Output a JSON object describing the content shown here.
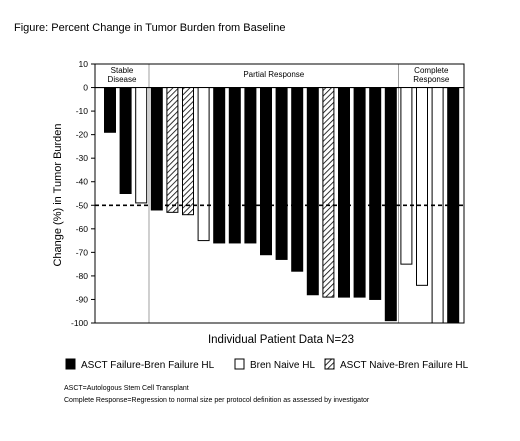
{
  "chart_data": {
    "type": "bar",
    "title": "Figure: Percent Change in Tumor Burden from Baseline",
    "xlabel": "Individual Patient Data N=23",
    "ylabel": "Change (%) in Tumor Burden",
    "ylim": [
      -100,
      10
    ],
    "yticks": [
      "10",
      "0",
      "-10",
      "-20",
      "-30",
      "-40",
      "-50",
      "-60",
      "-70",
      "-80",
      "-90",
      "-100"
    ],
    "reference_line": -50,
    "colors": {
      "ASCT Failure-Bren Failure HL": "#000000",
      "Bren Naive HL": "#ffffff",
      "ASCT Naive-Bren Failure HL": "hatched"
    },
    "regions": [
      {
        "label": "Stable Disease",
        "bars": [
          0,
          2
        ]
      },
      {
        "label": "Partial Response",
        "bars": [
          3,
          18
        ]
      },
      {
        "label": "Complete Response",
        "bars": [
          19,
          22
        ]
      }
    ],
    "legend_position": "bottom",
    "series": [
      {
        "name": "ASCT Failure-Bren Failure HL",
        "pattern": "solid"
      },
      {
        "name": "Bren Naive HL",
        "pattern": "empty"
      },
      {
        "name": "ASCT Naive-Bren Failure HL",
        "pattern": "hatched"
      }
    ],
    "bars": [
      {
        "value": -19,
        "series": 0
      },
      {
        "value": -45,
        "series": 0
      },
      {
        "value": -49,
        "series": 1
      },
      {
        "value": -52,
        "series": 0
      },
      {
        "value": -53,
        "series": 2
      },
      {
        "value": -54,
        "series": 2
      },
      {
        "value": -65,
        "series": 1
      },
      {
        "value": -66,
        "series": 0
      },
      {
        "value": -66,
        "series": 0
      },
      {
        "value": -66,
        "series": 0
      },
      {
        "value": -71,
        "series": 0
      },
      {
        "value": -73,
        "series": 0
      },
      {
        "value": -78,
        "series": 0
      },
      {
        "value": -88,
        "series": 0
      },
      {
        "value": -89,
        "series": 2
      },
      {
        "value": -89,
        "series": 0
      },
      {
        "value": -89,
        "series": 0
      },
      {
        "value": -90,
        "series": 0
      },
      {
        "value": -99,
        "series": 0
      },
      {
        "value": -75,
        "series": 1
      },
      {
        "value": -84,
        "series": 1
      },
      {
        "value": -100,
        "series": 1
      },
      {
        "value": -100,
        "series": 0
      }
    ]
  },
  "notes": [
    "ASCT=Autologous Stem Cell Transplant",
    "Complete Response=Regression to normal size per protocol definition as assessed by investigator"
  ]
}
